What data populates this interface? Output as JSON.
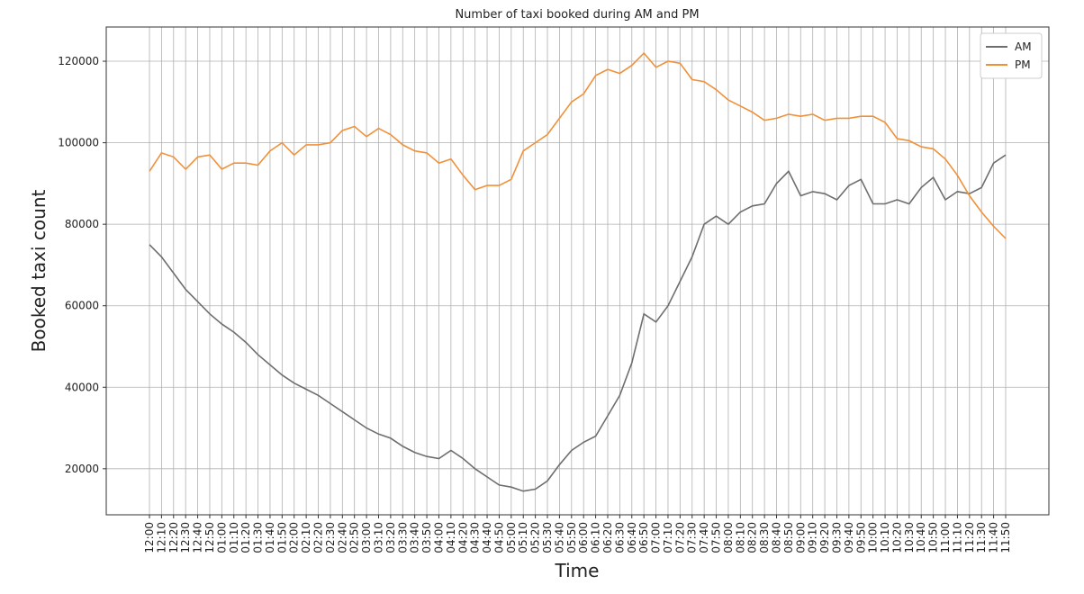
{
  "chart_data": {
    "type": "line",
    "title": "Number of taxi booked during AM and PM",
    "x_label": "Time",
    "y_label": "Booked taxi count",
    "categories": [
      "12:00",
      "12:10",
      "12:20",
      "12:30",
      "12:40",
      "12:50",
      "01:00",
      "01:10",
      "01:20",
      "01:30",
      "01:40",
      "01:50",
      "02:00",
      "02:10",
      "02:20",
      "02:30",
      "02:40",
      "02:50",
      "03:00",
      "03:10",
      "03:20",
      "03:30",
      "03:40",
      "03:50",
      "04:00",
      "04:10",
      "04:20",
      "04:30",
      "04:40",
      "04:50",
      "05:00",
      "05:10",
      "05:20",
      "05:30",
      "05:40",
      "05:50",
      "06:00",
      "06:10",
      "06:20",
      "06:30",
      "06:40",
      "06:50",
      "07:00",
      "07:10",
      "07:20",
      "07:30",
      "07:40",
      "07:50",
      "08:00",
      "08:10",
      "08:20",
      "08:30",
      "08:40",
      "08:50",
      "09:00",
      "09:10",
      "09:20",
      "09:30",
      "09:40",
      "09:50",
      "10:00",
      "10:10",
      "10:20",
      "10:30",
      "10:40",
      "10:50",
      "11:00",
      "11:10",
      "11:20",
      "11:30",
      "11:40",
      "11:50"
    ],
    "series": [
      {
        "name": "AM",
        "color": "#6e6e6e",
        "values": [
          75000,
          72000,
          68000,
          64000,
          61000,
          58000,
          55500,
          53500,
          51000,
          48000,
          45500,
          43000,
          41000,
          39500,
          38000,
          36000,
          34000,
          32000,
          30000,
          28500,
          27500,
          25500,
          24000,
          23000,
          22500,
          24500,
          22500,
          20000,
          18000,
          16000,
          15500,
          14500,
          15000,
          17000,
          21000,
          24500,
          26500,
          28000,
          33000,
          38000,
          46000,
          58000,
          56000,
          60000,
          66000,
          72000,
          80000,
          82000,
          80000,
          83000,
          84500,
          85000,
          90000,
          93000,
          87000,
          88000,
          87500,
          86000,
          89500,
          91000,
          85000,
          85000,
          86000,
          85000,
          89000,
          91500,
          86000,
          88000,
          87500,
          89000,
          95000,
          97000
        ]
      },
      {
        "name": "PM",
        "color": "#f0913a",
        "values": [
          93000,
          97500,
          96500,
          93500,
          96500,
          97000,
          93500,
          95000,
          95000,
          94500,
          98000,
          100000,
          97000,
          99500,
          99500,
          100000,
          103000,
          104000,
          101500,
          103500,
          102000,
          99500,
          98000,
          97500,
          95000,
          96000,
          92000,
          88500,
          89500,
          89500,
          91000,
          98000,
          100000,
          102000,
          106000,
          110000,
          112000,
          116500,
          118000,
          117000,
          119000,
          122000,
          118500,
          120000,
          119500,
          115500,
          115000,
          113000,
          110500,
          109000,
          107500,
          105500,
          106000,
          107000,
          106500,
          107000,
          105500,
          106000,
          106000,
          106500,
          106500,
          105000,
          101000,
          100500,
          99000,
          98500,
          96000,
          92000,
          87000,
          83000,
          79500,
          76500
        ]
      }
    ],
    "ylim": [
      8700,
      128400
    ],
    "yticks": [
      20000,
      40000,
      60000,
      80000,
      100000,
      120000
    ],
    "grid": true,
    "legend": "upper right"
  }
}
